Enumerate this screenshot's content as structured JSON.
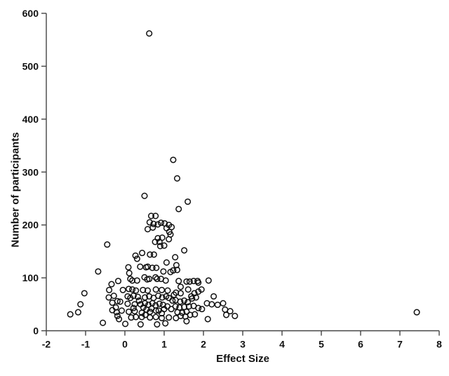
{
  "figure": {
    "xlabel": "Effect Size",
    "ylabel": "Number of participants"
  },
  "chart_data": {
    "type": "scatter",
    "title": "",
    "xlabel": "Effect Size",
    "ylabel": "Number of participants",
    "xlim": [
      -2,
      8
    ],
    "ylim": [
      0,
      600
    ],
    "xticks": [
      -2,
      -1,
      0,
      1,
      2,
      3,
      4,
      5,
      6,
      7,
      8
    ],
    "yticks": [
      0,
      100,
      200,
      300,
      400,
      500,
      600
    ],
    "grid": false,
    "legend": "none",
    "marker": {
      "shape": "open-circle",
      "color": "#111111",
      "radius": 3.8
    },
    "axis_color": "#444444",
    "points": [
      [
        0.62,
        562
      ],
      [
        1.23,
        323
      ],
      [
        1.33,
        288
      ],
      [
        0.5,
        255
      ],
      [
        1.6,
        244
      ],
      [
        1.37,
        230
      ],
      [
        0.67,
        217
      ],
      [
        0.78,
        217
      ],
      [
        0.63,
        205
      ],
      [
        0.73,
        202
      ],
      [
        0.84,
        201
      ],
      [
        0.92,
        204
      ],
      [
        1.01,
        203
      ],
      [
        1.12,
        200
      ],
      [
        1.19,
        196
      ],
      [
        0.58,
        192
      ],
      [
        0.71,
        195
      ],
      [
        1.06,
        194
      ],
      [
        1.13,
        187
      ],
      [
        1.16,
        182
      ],
      [
        -0.45,
        163
      ],
      [
        0.77,
        168
      ],
      [
        0.88,
        168
      ],
      [
        0.84,
        175
      ],
      [
        0.95,
        176
      ],
      [
        1.12,
        173
      ],
      [
        1.0,
        161
      ],
      [
        0.9,
        160
      ],
      [
        1.51,
        152
      ],
      [
        0.44,
        147
      ],
      [
        0.64,
        144
      ],
      [
        0.74,
        144
      ],
      [
        0.27,
        142
      ],
      [
        1.28,
        139
      ],
      [
        0.31,
        136
      ],
      [
        1.06,
        129
      ],
      [
        1.31,
        124
      ],
      [
        0.09,
        120
      ],
      [
        0.39,
        121
      ],
      [
        0.54,
        120
      ],
      [
        0.58,
        121
      ],
      [
        0.7,
        119
      ],
      [
        0.8,
        119
      ],
      [
        -0.68,
        112
      ],
      [
        0.11,
        109
      ],
      [
        0.98,
        112
      ],
      [
        1.16,
        111
      ],
      [
        1.23,
        114
      ],
      [
        1.33,
        115
      ],
      [
        -0.34,
        88
      ],
      [
        -0.17,
        94
      ],
      [
        0.14,
        98
      ],
      [
        0.19,
        95
      ],
      [
        0.31,
        95
      ],
      [
        0.5,
        101
      ],
      [
        0.57,
        97
      ],
      [
        0.62,
        98
      ],
      [
        0.78,
        101
      ],
      [
        0.82,
        98
      ],
      [
        0.92,
        98
      ],
      [
        1.04,
        95
      ],
      [
        1.37,
        94
      ],
      [
        1.57,
        93
      ],
      [
        1.65,
        93
      ],
      [
        1.75,
        94
      ],
      [
        1.85,
        94
      ],
      [
        1.87,
        91
      ],
      [
        2.13,
        95
      ],
      [
        -1.03,
        71
      ],
      [
        -0.4,
        77
      ],
      [
        -0.05,
        77
      ],
      [
        0.1,
        79
      ],
      [
        0.19,
        78
      ],
      [
        0.28,
        76
      ],
      [
        0.46,
        77
      ],
      [
        0.58,
        76
      ],
      [
        0.79,
        78
      ],
      [
        0.94,
        77
      ],
      [
        1.09,
        76
      ],
      [
        1.3,
        72
      ],
      [
        1.42,
        83
      ],
      [
        1.42,
        71
      ],
      [
        1.61,
        78
      ],
      [
        1.77,
        71
      ],
      [
        1.87,
        74
      ],
      [
        1.95,
        78
      ],
      [
        -0.41,
        63
      ],
      [
        -0.28,
        66
      ],
      [
        0.07,
        65
      ],
      [
        0.14,
        62
      ],
      [
        0.22,
        66
      ],
      [
        0.33,
        64
      ],
      [
        0.51,
        63
      ],
      [
        0.62,
        65
      ],
      [
        0.73,
        62
      ],
      [
        0.85,
        66
      ],
      [
        0.95,
        63
      ],
      [
        1.05,
        65
      ],
      [
        1.12,
        62
      ],
      [
        1.25,
        68
      ],
      [
        1.69,
        65
      ],
      [
        1.71,
        61
      ],
      [
        1.81,
        63
      ],
      [
        2.26,
        65
      ],
      [
        -1.13,
        50
      ],
      [
        -0.32,
        53
      ],
      [
        -0.19,
        56
      ],
      [
        -0.12,
        55
      ],
      [
        0.07,
        51
      ],
      [
        0.25,
        50
      ],
      [
        0.36,
        57
      ],
      [
        0.4,
        50
      ],
      [
        0.51,
        52
      ],
      [
        0.6,
        49
      ],
      [
        0.7,
        52
      ],
      [
        0.78,
        48
      ],
      [
        0.88,
        51
      ],
      [
        0.97,
        49
      ],
      [
        1.21,
        57
      ],
      [
        1.29,
        58
      ],
      [
        1.41,
        55
      ],
      [
        1.51,
        57
      ],
      [
        1.6,
        54
      ],
      [
        2.09,
        52
      ],
      [
        2.21,
        50
      ],
      [
        2.36,
        49
      ],
      [
        2.5,
        52
      ],
      [
        -1.39,
        31
      ],
      [
        -1.19,
        35
      ],
      [
        -0.32,
        39
      ],
      [
        -0.23,
        44
      ],
      [
        -0.21,
        35
      ],
      [
        -0.08,
        38
      ],
      [
        0.1,
        36
      ],
      [
        0.22,
        43
      ],
      [
        0.25,
        37
      ],
      [
        0.43,
        34
      ],
      [
        0.47,
        44
      ],
      [
        0.55,
        40
      ],
      [
        0.64,
        36
      ],
      [
        0.68,
        42
      ],
      [
        0.79,
        38
      ],
      [
        0.86,
        38
      ],
      [
        0.94,
        33
      ],
      [
        1.0,
        41
      ],
      [
        1.08,
        46
      ],
      [
        1.18,
        41
      ],
      [
        1.29,
        46
      ],
      [
        1.34,
        35
      ],
      [
        1.39,
        44
      ],
      [
        1.46,
        34
      ],
      [
        1.51,
        45
      ],
      [
        1.57,
        36
      ],
      [
        1.63,
        46
      ],
      [
        1.75,
        47
      ],
      [
        1.87,
        43
      ],
      [
        1.96,
        41
      ],
      [
        2.55,
        40
      ],
      [
        2.68,
        37
      ],
      [
        -0.56,
        15
      ],
      [
        -0.19,
        28
      ],
      [
        -0.15,
        22
      ],
      [
        0.01,
        13
      ],
      [
        0.16,
        25
      ],
      [
        0.28,
        26
      ],
      [
        0.4,
        12
      ],
      [
        0.43,
        26
      ],
      [
        0.52,
        30
      ],
      [
        0.64,
        25
      ],
      [
        0.79,
        26
      ],
      [
        0.82,
        12
      ],
      [
        0.94,
        24
      ],
      [
        1.03,
        14
      ],
      [
        1.12,
        25
      ],
      [
        1.3,
        24
      ],
      [
        1.42,
        28
      ],
      [
        1.54,
        27
      ],
      [
        1.57,
        18
      ],
      [
        1.66,
        30
      ],
      [
        1.78,
        31
      ],
      [
        2.11,
        22
      ],
      [
        2.58,
        30
      ],
      [
        2.8,
        28
      ],
      [
        7.43,
        35
      ]
    ]
  }
}
